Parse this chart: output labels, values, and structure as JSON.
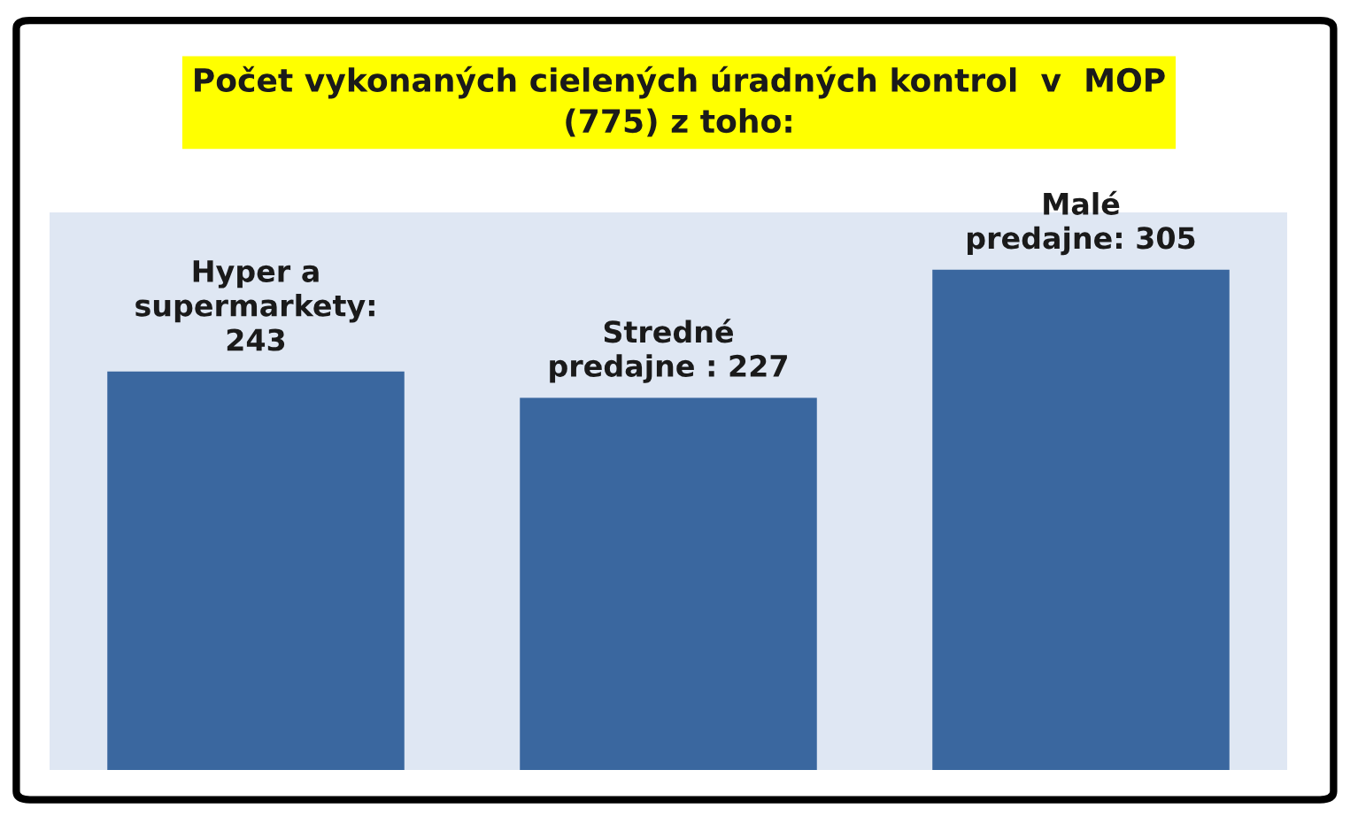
{
  "chart_data": {
    "type": "bar",
    "title": "Počet vykonaných cielených úradných kontrol  v  MOP\n(775) z toho:",
    "categories": [
      null,
      null,
      null
    ],
    "values": [
      243,
      227,
      305
    ],
    "value_labels": [
      "Hyper a\nsupermarkety:\n243",
      "Stredné\npredajne : 227",
      "Malé\npredajne: 305"
    ],
    "color": "#3a679f",
    "ylim": [
      0,
      340
    ],
    "grid": false,
    "legend": false
  }
}
